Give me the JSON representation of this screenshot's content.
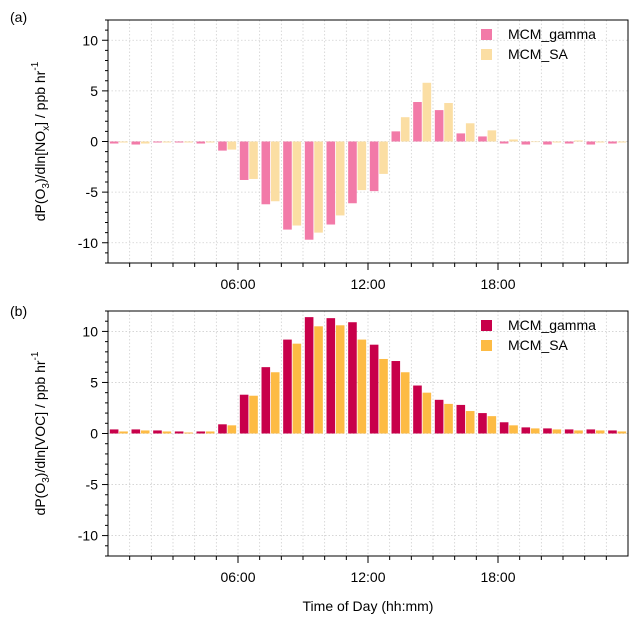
{
  "chart_data": [
    {
      "panel_label": "(a)",
      "type": "bar",
      "ylabel": "dP(O3)/dln[NOx] / ppb hr-1",
      "ylabel_parts": [
        "dP(O",
        "3",
        ")/dln[NO",
        "x",
        "] / ppb hr",
        "-1"
      ],
      "ylim": [
        -12,
        12
      ],
      "yticks": [
        -10,
        -5,
        0,
        5,
        10
      ],
      "ytick_labels": [
        "-10",
        "-5",
        "0",
        "5",
        "10"
      ],
      "xlim": [
        0,
        24
      ],
      "xticks": [
        6,
        12,
        18
      ],
      "xtick_labels": [
        "06:00",
        "12:00",
        "18:00"
      ],
      "grid": true,
      "legend_position": "top-right",
      "x": [
        0,
        1,
        2,
        3,
        4,
        5,
        6,
        7,
        8,
        9,
        10,
        11,
        12,
        13,
        14,
        15,
        16,
        17,
        18,
        19,
        20,
        21,
        22,
        23
      ],
      "series": [
        {
          "name": "MCM_gamma",
          "color": "#f27aa8",
          "values": [
            -0.2,
            -0.3,
            -0.1,
            -0.1,
            -0.2,
            -0.9,
            -3.8,
            -6.2,
            -8.7,
            -9.7,
            -8.2,
            -6.1,
            -4.9,
            1.0,
            3.9,
            3.1,
            0.8,
            0.5,
            -0.2,
            -0.3,
            -0.3,
            -0.2,
            -0.3,
            -0.2
          ]
        },
        {
          "name": "MCM_SA",
          "color": "#fbdea3",
          "values": [
            -0.1,
            -0.2,
            -0.1,
            -0.1,
            -0.1,
            -0.8,
            -3.7,
            -5.9,
            -8.3,
            -9.0,
            -7.3,
            -4.8,
            -3.2,
            2.4,
            5.8,
            3.8,
            1.8,
            1.1,
            0.2,
            0.0,
            -0.1,
            0.1,
            -0.1,
            -0.1
          ]
        }
      ]
    },
    {
      "panel_label": "(b)",
      "type": "bar",
      "ylabel": "dP(O3)/dln[VOC] / ppb hr-1",
      "ylabel_parts": [
        "dP(O",
        "3",
        ")/dln[VOC] / ppb hr",
        "-1"
      ],
      "xlabel": "Time of Day (hh:mm)",
      "ylim": [
        -12,
        12
      ],
      "yticks": [
        -10,
        -5,
        0,
        5,
        10
      ],
      "ytick_labels": [
        "-10",
        "-5",
        "0",
        "5",
        "10"
      ],
      "xlim": [
        0,
        24
      ],
      "xticks": [
        6,
        12,
        18
      ],
      "xtick_labels": [
        "06:00",
        "12:00",
        "18:00"
      ],
      "grid": true,
      "legend_position": "top-right",
      "x": [
        0,
        1,
        2,
        3,
        4,
        5,
        6,
        7,
        8,
        9,
        10,
        11,
        12,
        13,
        14,
        15,
        16,
        17,
        18,
        19,
        20,
        21,
        22,
        23
      ],
      "series": [
        {
          "name": "MCM_gamma",
          "color": "#c8004a",
          "values": [
            0.4,
            0.4,
            0.3,
            0.2,
            0.2,
            0.9,
            3.8,
            6.5,
            9.2,
            11.4,
            11.3,
            10.9,
            8.7,
            7.1,
            4.7,
            3.3,
            2.8,
            2.0,
            1.1,
            0.6,
            0.5,
            0.4,
            0.4,
            0.3
          ]
        },
        {
          "name": "MCM_SA",
          "color": "#fdbb44",
          "values": [
            0.2,
            0.3,
            0.2,
            0.1,
            0.2,
            0.8,
            3.7,
            6.0,
            8.8,
            10.5,
            10.6,
            9.2,
            7.3,
            6.0,
            4.0,
            2.9,
            2.2,
            1.7,
            0.8,
            0.5,
            0.4,
            0.3,
            0.3,
            0.2
          ]
        }
      ]
    }
  ]
}
